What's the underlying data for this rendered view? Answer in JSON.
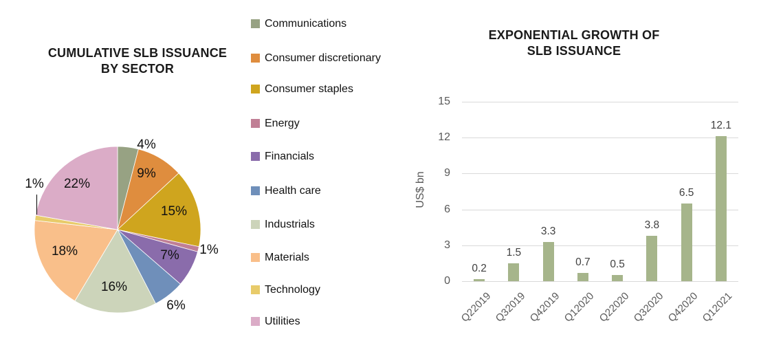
{
  "chart_data": [
    {
      "type": "pie",
      "title": "CUMULATIVE SLB ISSUANCE BY SECTOR",
      "title_lines": [
        "CUMULATIVE SLB ISSUANCE",
        "BY SECTOR"
      ],
      "labels": [
        "Communications",
        "Consumer discretionary",
        "Consumer staples",
        "Energy",
        "Financials",
        "Health care",
        "Industrials",
        "Materials",
        "Technology",
        "Utilities"
      ],
      "values": [
        4,
        9,
        15,
        1,
        7,
        6,
        16,
        18,
        1,
        22
      ],
      "value_labels": [
        "4%",
        "9%",
        "15%",
        "1%",
        "7%",
        "6%",
        "16%",
        "18%",
        "1%",
        "22%"
      ],
      "colors": [
        "#97a283",
        "#df8d3e",
        "#cfa51e",
        "#c07f95",
        "#8a6cab",
        "#6f8fba",
        "#ccd4ba",
        "#f9bf8a",
        "#e8cb6a",
        "#dbacc7"
      ],
      "legend_position": "right",
      "label_color": "#111111"
    },
    {
      "type": "bar",
      "title": "EXPONENTIAL GROWTH OF SLB ISSUANCE",
      "title_lines": [
        "EXPONENTIAL GROWTH OF",
        "SLB ISSUANCE"
      ],
      "categories": [
        "Q22019",
        "Q32019",
        "Q42019",
        "Q12020",
        "Q22020",
        "Q32020",
        "Q42020",
        "Q12021"
      ],
      "values": [
        0.2,
        1.5,
        3.3,
        0.7,
        0.5,
        3.8,
        6.5,
        12.1
      ],
      "data_labels": [
        "0.2",
        "1.5",
        "3.3",
        "0.7",
        "0.5",
        "3.8",
        "6.5",
        "12.1"
      ],
      "xlabel": "",
      "ylabel": "US$ bn",
      "ylim": [
        0,
        15
      ],
      "yticks": [
        "0",
        "3",
        "6",
        "9",
        "12",
        "15"
      ],
      "grid": true,
      "bar_color": "#a6b58b",
      "gridline_color": "#d9d9d9",
      "axis_text_color": "#595959",
      "data_label_color": "#404040"
    }
  ]
}
